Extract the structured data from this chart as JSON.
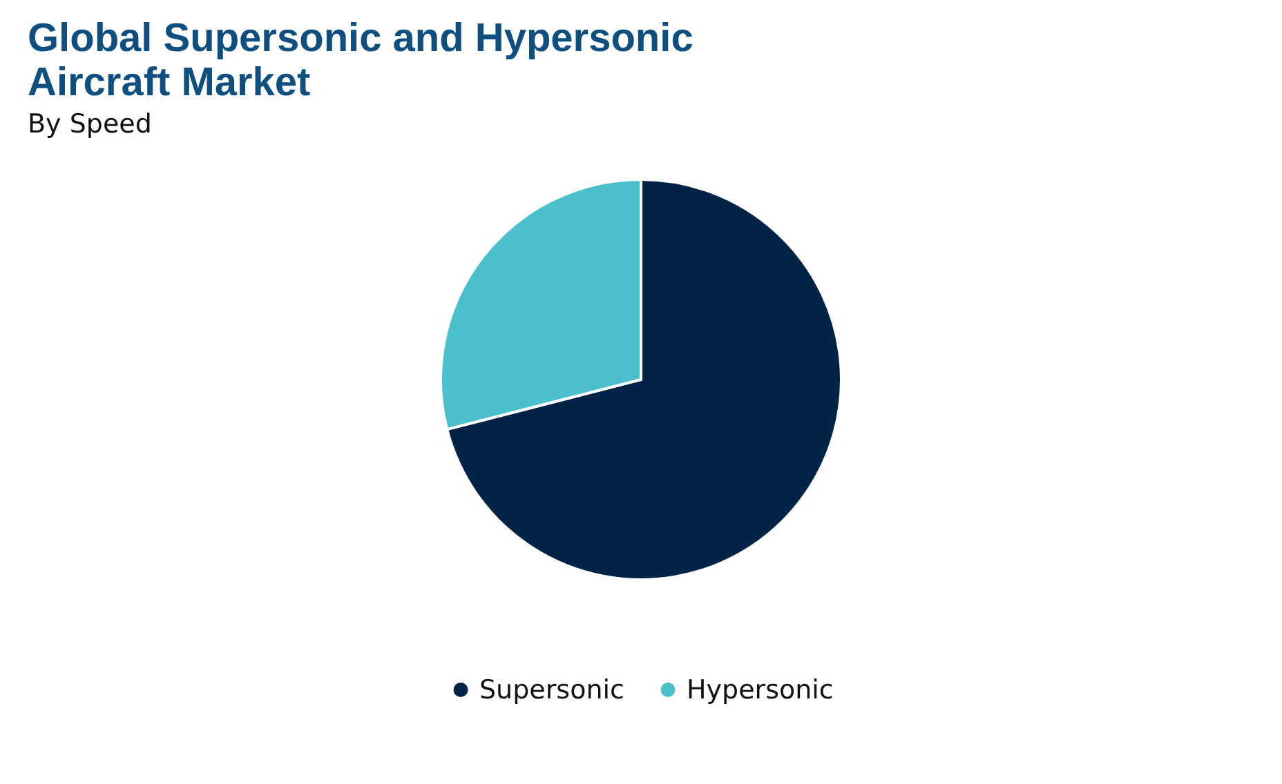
{
  "chart_data": {
    "type": "pie",
    "title": "Global Supersonic and Hypersonic Aircraft Market",
    "subtitle": "By Speed",
    "categories": [
      "Supersonic",
      "Hypersonic"
    ],
    "values": [
      71,
      29
    ],
    "colors": [
      "#002347",
      "#4bc0cc"
    ],
    "legend": "bottom"
  }
}
